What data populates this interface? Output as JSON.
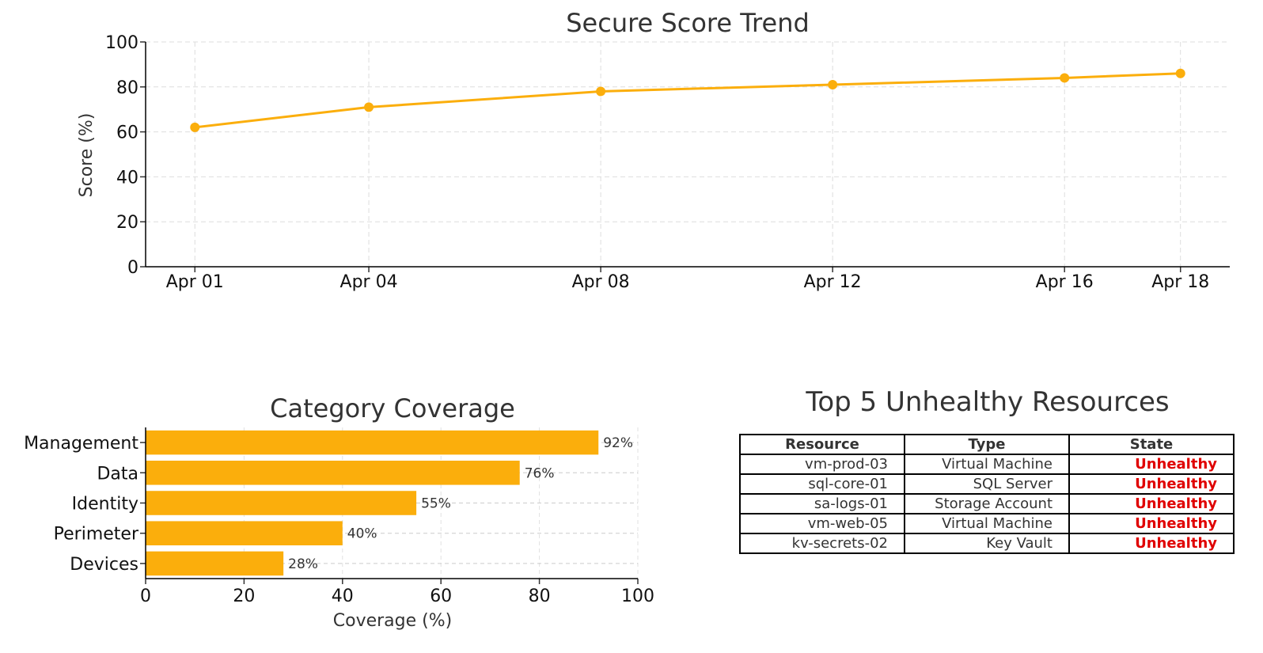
{
  "colors": {
    "accent": "#fbae0c",
    "text": "#333333",
    "grid": "#dddddd",
    "unhealthy": "#e00000"
  },
  "chart_data": [
    {
      "type": "line",
      "title": "Secure Score Trend",
      "xlabel": "",
      "ylabel": "Score (%)",
      "x": [
        "Apr 01",
        "Apr 04",
        "Apr 08",
        "Apr 12",
        "Apr 16",
        "Apr 18"
      ],
      "x_day": [
        1,
        4,
        8,
        12,
        16,
        18
      ],
      "xlim": [
        0.15,
        18.85
      ],
      "y": [
        62,
        71,
        78,
        81,
        84,
        86
      ],
      "ylim": [
        0,
        100
      ],
      "yticks": [
        0,
        20,
        40,
        60,
        80,
        100
      ],
      "grid": true,
      "color": "#fbae0c"
    },
    {
      "type": "bar",
      "orientation": "horizontal",
      "title": "Category Coverage",
      "categories": [
        "Management",
        "Data",
        "Identity",
        "Perimeter",
        "Devices"
      ],
      "values": [
        92,
        76,
        55,
        40,
        28
      ],
      "value_labels": [
        "92%",
        "76%",
        "55%",
        "40%",
        "28%"
      ],
      "xlabel": "Coverage (%)",
      "ylabel": "",
      "xlim": [
        0,
        100
      ],
      "xticks": [
        0,
        20,
        40,
        60,
        80,
        100
      ],
      "grid": true,
      "color": "#fbae0c"
    },
    {
      "type": "table",
      "title": "Top 5 Unhealthy Resources",
      "columns": [
        "Resource",
        "Type",
        "State"
      ],
      "rows": [
        [
          "vm-prod-03",
          "Virtual Machine",
          "Unhealthy"
        ],
        [
          "sql-core-01",
          "SQL Server",
          "Unhealthy"
        ],
        [
          "sa-logs-01",
          "Storage Account",
          "Unhealthy"
        ],
        [
          "vm-web-05",
          "Virtual Machine",
          "Unhealthy"
        ],
        [
          "kv-secrets-02",
          "Key Vault",
          "Unhealthy"
        ]
      ]
    }
  ]
}
